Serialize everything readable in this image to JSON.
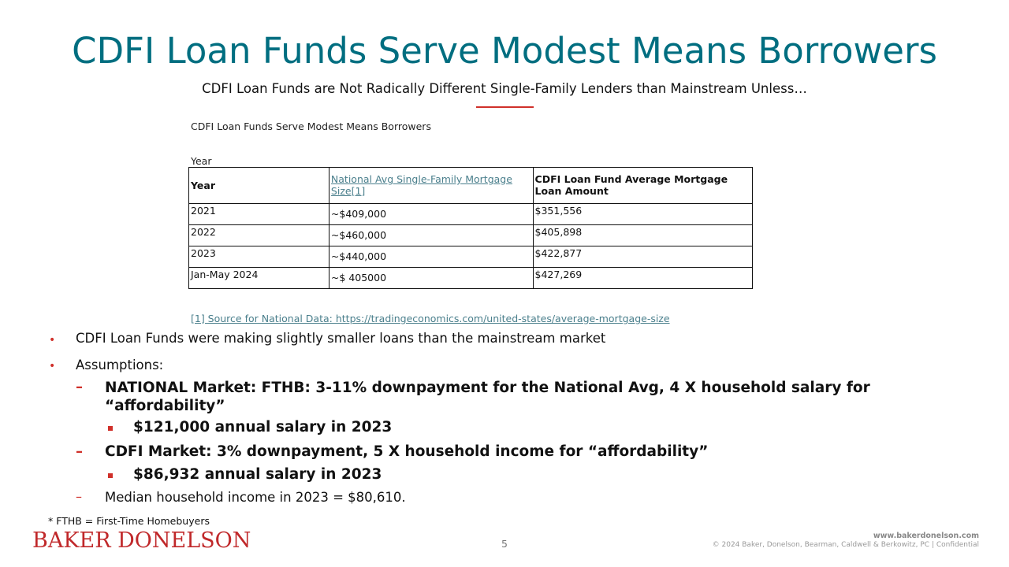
{
  "slide": {
    "title": "CDFI Loan Funds Serve Modest Means Borrowers",
    "subtitle": "CDFI Loan Funds are Not Radically Different Single-Family Lenders than Mainstream Unless…"
  },
  "table": {
    "caption": "CDFI Loan Funds Serve Modest Means Borrowers",
    "year_label": "Year",
    "headers": [
      "Year",
      "National Avg Single-Family Mortgage Size[1]",
      "CDFI Loan Fund Average Mortgage Loan Amount"
    ],
    "rows": [
      [
        "2021",
        "~$409,000",
        "$351,556"
      ],
      [
        "2022",
        "~$460,000",
        "$405,898"
      ],
      [
        "2023",
        "~$440,000",
        "$422,877"
      ],
      [
        "Jan-May 2024",
        "~$ 405000",
        "$427,269"
      ]
    ],
    "footnote": "[1] Source for National Data: https://tradingeconomics.com/united-states/average-mortgage-size"
  },
  "bullets": {
    "b1": "CDFI Loan Funds were making slightly smaller loans than the mainstream market",
    "b2": "Assumptions:",
    "national": "NATIONAL Market: FTHB: 3-11% downpayment for the National Avg, 4 X household salary for “affordability”",
    "national_salary": "$121,000 annual salary in 2023",
    "cdfi": "CDFI Market: 3% downpayment, 5 X household income for “affordability”",
    "cdfi_salary": "$86,932 annual salary in 2023",
    "median": "Median household income in 2023 = $80,610."
  },
  "footer": {
    "fthb_note": "* FTHB = First-Time Homebuyers",
    "logo_text": "BAKER DONELSON",
    "page_number": "5",
    "url": "www.bakerdonelson.com",
    "copyright": "© 2024 Baker, Donelson, Bearman, Caldwell & Berkowitz, PC | Confidential"
  },
  "colors": {
    "title": "#006e80",
    "accent": "#d0302a",
    "link": "#4a7f8c"
  }
}
